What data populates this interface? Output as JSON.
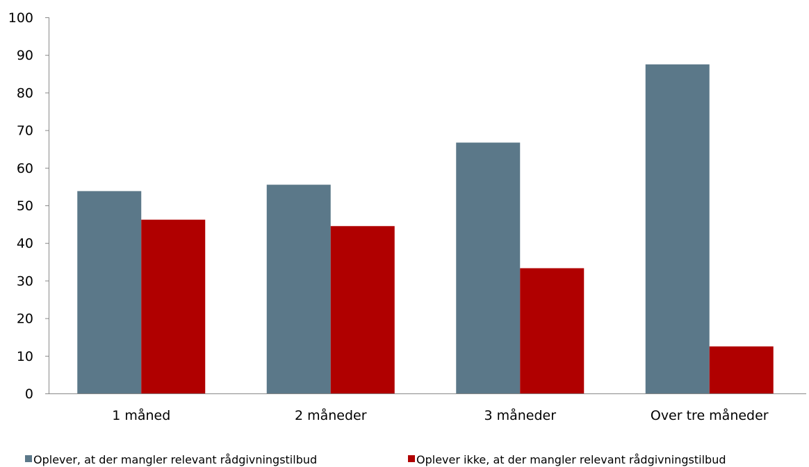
{
  "chart_data": {
    "type": "bar",
    "title": "",
    "xlabel": "",
    "ylabel": "",
    "categories": [
      "1 måned",
      "2 måneder",
      "3 måneder",
      "Over tre måneder"
    ],
    "ylim": [
      0,
      100
    ],
    "yticks": [
      0,
      10,
      20,
      30,
      40,
      50,
      60,
      70,
      80,
      90,
      100
    ],
    "grid": false,
    "legend_position": "bottom",
    "series": [
      {
        "name": "Oplever, at der mangler relevant rådgivningstilbud",
        "color": "#5b7889",
        "values": [
          53.8,
          55.5,
          66.7,
          87.5
        ]
      },
      {
        "name": "Oplever ikke, at der mangler relevant rådgivningstilbud",
        "color": "#b00000",
        "values": [
          46.2,
          44.5,
          33.3,
          12.5
        ]
      }
    ]
  }
}
